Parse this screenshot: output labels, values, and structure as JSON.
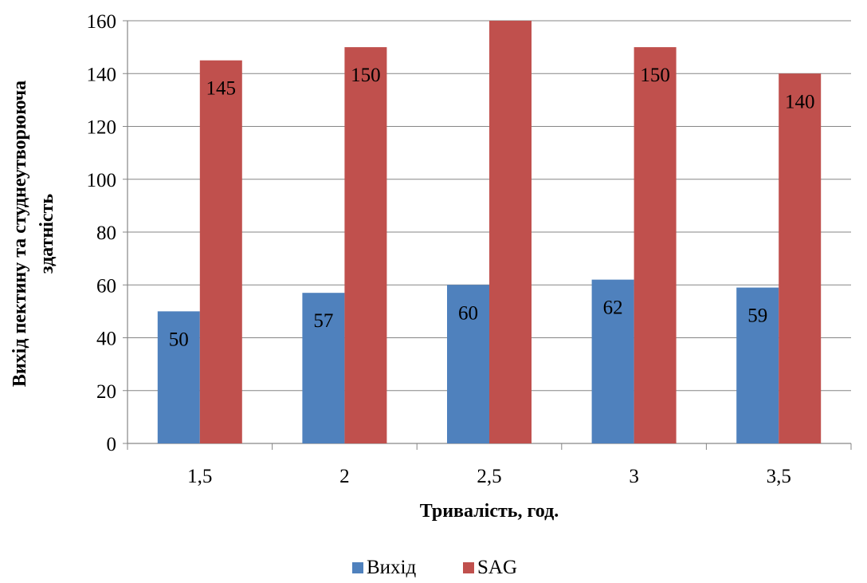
{
  "chart_data": {
    "type": "bar",
    "categories": [
      "1,5",
      "2",
      "2,5",
      "3",
      "3,5"
    ],
    "series": [
      {
        "name": "Вихід",
        "values": [
          50,
          57,
          60,
          62,
          59
        ],
        "color": "#4F81BD",
        "labels": [
          "50",
          "57",
          "60",
          "62",
          "59"
        ]
      },
      {
        "name": "SAG",
        "values": [
          145,
          150,
          162,
          150,
          140
        ],
        "color": "#C0504D",
        "labels": [
          "145",
          "150",
          "",
          "150",
          "140"
        ]
      }
    ],
    "xlabel": "Тривалість, год.",
    "ylabel_lines": [
      "Вихід пектину та студнеутворююча",
      "здатність"
    ],
    "ylim": [
      0,
      160
    ],
    "yticks": [
      "0",
      "20",
      "40",
      "60",
      "80",
      "100",
      "120",
      "140",
      "160"
    ],
    "grid": true,
    "legend_position": "bottom"
  }
}
